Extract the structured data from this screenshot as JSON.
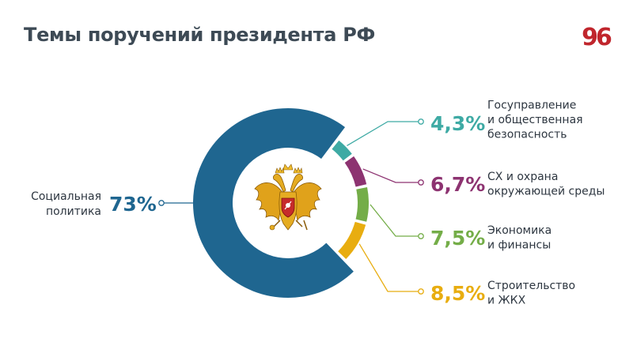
{
  "title": "Темы поручений президента РФ",
  "logo": {
    "text": "96",
    "color": "#c0262d"
  },
  "chart_data": {
    "type": "pie",
    "variant": "donut",
    "title": "Темы поручений президента РФ",
    "unit": "%",
    "legend": "callouts",
    "slices": [
      {
        "label_lines": [
          "Социальная",
          "политика"
        ],
        "value": 73,
        "display": "73%",
        "color": "#1f6690"
      },
      {
        "label_lines": [
          "Строительство",
          "и ЖКХ"
        ],
        "value": 8.5,
        "display": "8,5%",
        "color": "#e8ad10"
      },
      {
        "label_lines": [
          "Экономика",
          "и финансы"
        ],
        "value": 7.5,
        "display": "7,5%",
        "color": "#74ad48"
      },
      {
        "label_lines": [
          "СХ и охрана",
          "окружающей среды"
        ],
        "value": 6.7,
        "display": "6,7%",
        "color": "#8d3371"
      },
      {
        "label_lines": [
          "Госуправление",
          "и общественная",
          "безопасность"
        ],
        "value": 4.3,
        "display": "4,3%",
        "color": "#3eaaa4"
      }
    ]
  },
  "center_icon": "russian-coat-of-arms-icon"
}
